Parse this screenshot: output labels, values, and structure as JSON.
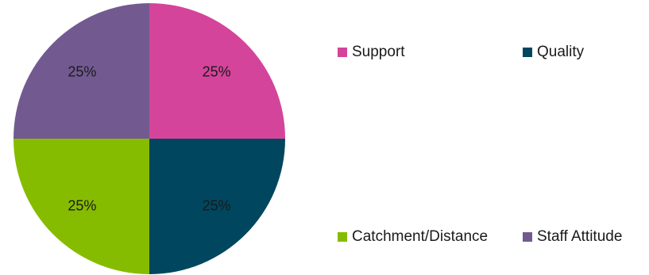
{
  "chart_data": {
    "type": "pie",
    "categories": [
      "Support",
      "Quality",
      "Catchment/Distance",
      "Staff Attitude"
    ],
    "values": [
      25,
      25,
      25,
      25
    ],
    "value_labels": [
      "25%",
      "25%",
      "25%",
      "25%"
    ],
    "colors": [
      "#d4449a",
      "#00465e",
      "#86bc00",
      "#725a91"
    ],
    "legend_position": "right"
  }
}
